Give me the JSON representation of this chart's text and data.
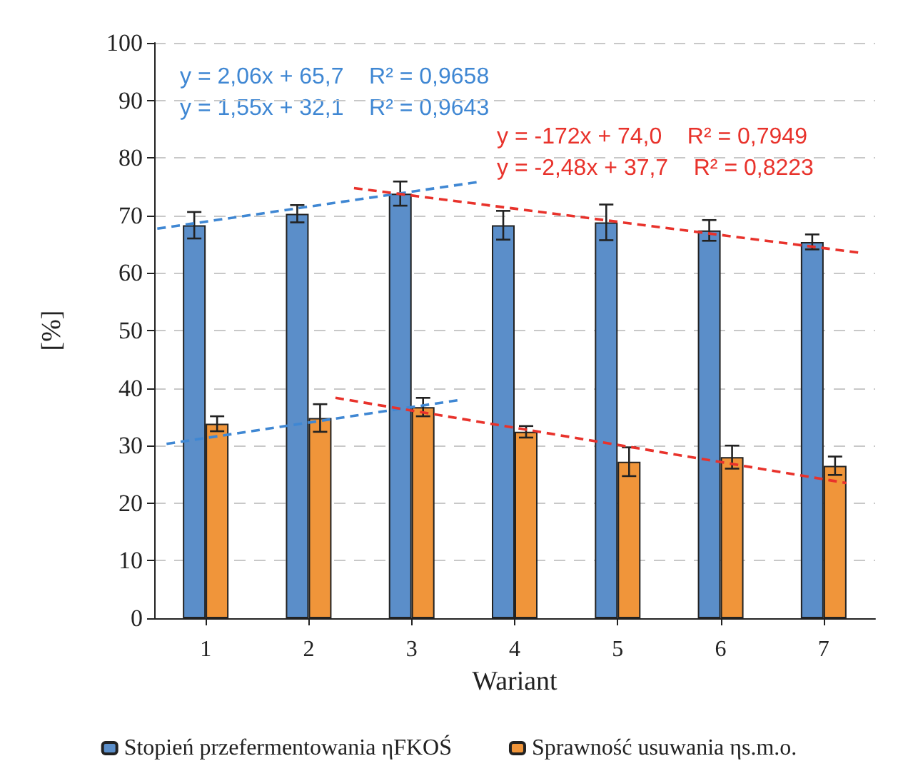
{
  "chart_data": {
    "type": "bar",
    "xlabel": "Wariant",
    "ylabel": "[%]",
    "x": [
      1,
      2,
      3,
      4,
      5,
      6,
      7
    ],
    "xlim": [
      0.5,
      7.5
    ],
    "xticks": [
      1,
      2,
      3,
      4,
      5,
      6,
      7
    ],
    "ylim": [
      0,
      100
    ],
    "yticks": [
      0,
      10,
      20,
      30,
      40,
      50,
      60,
      70,
      80,
      90,
      100
    ],
    "grid": "y",
    "legend": "bottom",
    "series": [
      {
        "name": "Stopień przefermentowania ηFKOŚ",
        "color": "#5b8ec9",
        "values": [
          68.3,
          70.3,
          73.8,
          68.3,
          68.8,
          67.4,
          65.4
        ],
        "errors": [
          2.3,
          1.5,
          2.1,
          2.5,
          3.1,
          1.8,
          1.3
        ]
      },
      {
        "name": "Sprawność usuwania ηs.m.o.",
        "color": "#f0953a",
        "values": [
          33.8,
          34.8,
          36.7,
          32.4,
          27.2,
          28.0,
          26.5
        ],
        "errors": [
          1.3,
          2.4,
          1.6,
          1.0,
          2.5,
          2.0,
          1.6
        ]
      },
      {
        "type": "line",
        "color": "#3f87d3",
        "x": [
          0.53,
          3.64
        ],
        "values": [
          67.7,
          75.8
        ],
        "line_style": "dashed",
        "marker": "none"
      },
      {
        "type": "line",
        "color": "#3f87d3",
        "x": [
          0.62,
          3.49
        ],
        "values": [
          30.3,
          38.0
        ],
        "line_style": "dashed",
        "marker": "none"
      },
      {
        "type": "line",
        "color": "#e8322b",
        "x": [
          2.44,
          7.36
        ],
        "values": [
          74.75,
          63.5
        ],
        "line_style": "dashed",
        "marker": "none"
      },
      {
        "type": "line",
        "color": "#e8322b",
        "x": [
          2.26,
          7.22
        ],
        "values": [
          38.3,
          23.5
        ],
        "line_style": "dashed",
        "marker": "none"
      }
    ],
    "annotations": [
      "y = 2,06x + 65,7    R² = 0,9658",
      "y = 1,55x + 32,1    R² = 0,9643",
      "y = -172x + 74,0    R² = 0,7949",
      "y = -2,48x + 37,7    R² = 0,8223"
    ]
  }
}
